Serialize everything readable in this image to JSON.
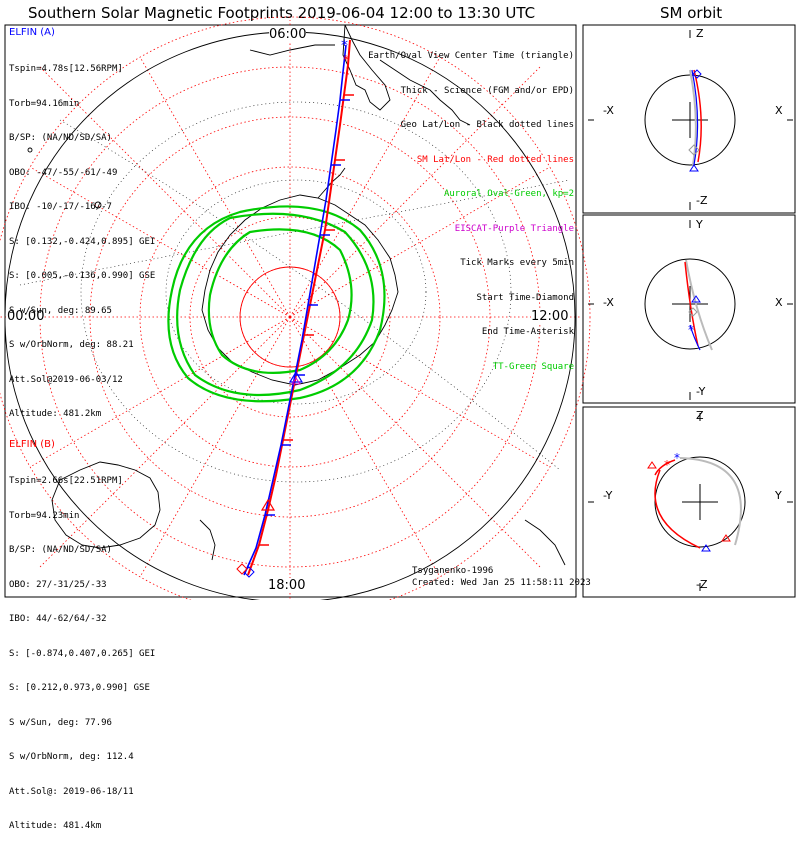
{
  "title": "Southern Solar Magnetic Footprints 2019-06-04 12:00 to 13:30 UTC",
  "orbit_title": "SM orbit",
  "map": {
    "time_labels": {
      "top": "06:00",
      "left": "00:00",
      "right": "12:00",
      "bottom": "18:00"
    }
  },
  "elfin_a": {
    "name": "ELFIN (A)",
    "color": "#0000ff",
    "lines": [
      "Tspin=4.78s[12.56RPM]",
      "Torb=94.16min",
      "B/SP: (NA/ND/SD/SA)",
      "OBO: -47/-55/-61/-49",
      "IBO: -10/-17/-16/-7",
      "S: [0.132,-0.424,0.895] GEI",
      "S: [0.005,-0.136,0.990] GSE",
      "S w/Sun, deg: 89.65",
      "S w/OrbNorm, deg: 88.21",
      "Att.Sol@2019-06-03/12",
      "Altitude: 481.2km"
    ]
  },
  "elfin_b": {
    "name": "ELFIN (B)",
    "color": "#ff0000",
    "lines": [
      "Tspin=2.66s[22.51RPM]",
      "Torb=94.23min",
      "B/SP: (NA/ND/SD/SA)",
      "OBO: 27/-31/25/-33",
      "IBO: 44/-62/64/-32",
      "S: [-0.874,0.407,0.265] GEI",
      "S: [0.212,0.973,0.990] GSE",
      "S w/Sun, deg: 77.96",
      "S w/OrbNorm, deg: 112.4",
      "Att.Sol@: 2019-06-18/11",
      "Altitude: 481.4km"
    ]
  },
  "legend": {
    "lines": [
      {
        "text": "Earth/Oval View Center Time (triangle)",
        "color": "#000000"
      },
      {
        "text": "Thick - Science (FGM and/or EPD)",
        "color": "#000000"
      },
      {
        "text": "Geo Lat/Lon - Black dotted lines",
        "color": "#000000"
      },
      {
        "text": "SM Lat/Lon - Red dotted lines",
        "color": "#ff0000"
      },
      {
        "text": "Auroral Oval-Green, kp=2",
        "color": "#00cc00"
      },
      {
        "text": "EISCAT-Purple Triangle",
        "color": "#cc00cc"
      },
      {
        "text": "Tick Marks every 5min",
        "color": "#000000"
      },
      {
        "text": "Start Time-Diamond",
        "color": "#000000"
      },
      {
        "text": "End Time-Asterisk",
        "color": "#000000"
      },
      {
        "text": "TT-Green Square",
        "color": "#00cc00"
      }
    ]
  },
  "credits": {
    "model": "Tsyganenko-1996",
    "created": "Created: Wed Jan 25 11:58:11 2023"
  },
  "orbit_panels": [
    {
      "top": "Z",
      "bottom": "-Z",
      "left": "-X",
      "right": "X"
    },
    {
      "top": "Y",
      "bottom": "-Y",
      "left": "-X",
      "right": "X"
    },
    {
      "top": "Z",
      "bottom": "-Z",
      "left": "-Y",
      "right": "Y"
    }
  ],
  "colors": {
    "elfin_a": "#0000ff",
    "elfin_b": "#ff0000",
    "auroral_oval": "#00cc00",
    "sm_grid": "#ff0000",
    "geo_grid": "#000000",
    "eiscat": "#cc00cc"
  }
}
